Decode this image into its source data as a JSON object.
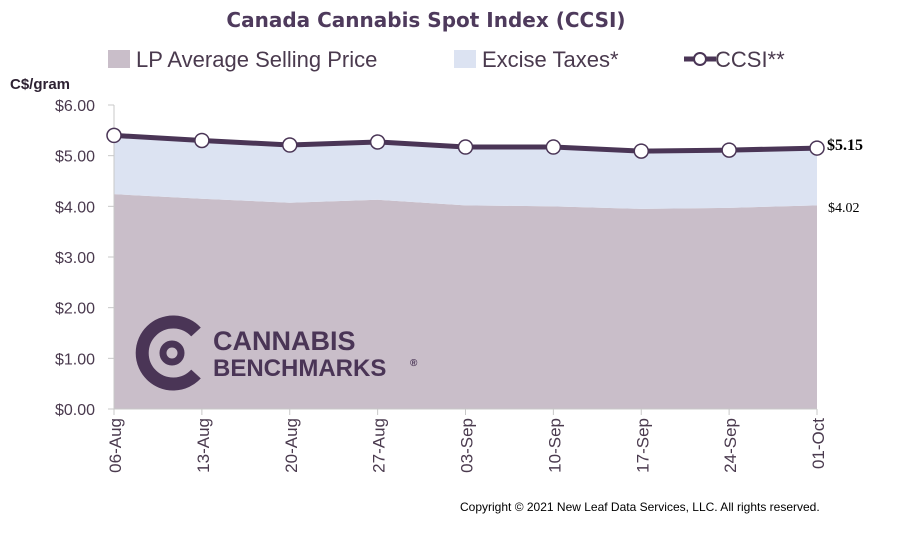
{
  "chart_data": {
    "type": "area",
    "title": "Canada Cannabis Spot Index (CCSI)",
    "ylabel": "C$/gram",
    "categories": [
      "06-Aug",
      "13-Aug",
      "20-Aug",
      "27-Aug",
      "03-Sep",
      "10-Sep",
      "17-Sep",
      "24-Sep",
      "01-Oct"
    ],
    "ylim": [
      0,
      6
    ],
    "yticks": [
      "$0.00",
      "$1.00",
      "$2.00",
      "$3.00",
      "$4.00",
      "$5.00",
      "$6.00"
    ],
    "series": [
      {
        "name": "LP Average Selling Price",
        "type": "area",
        "color": "#c9bec9",
        "values": [
          4.24,
          4.15,
          4.07,
          4.13,
          4.02,
          4.0,
          3.95,
          3.97,
          4.02
        ]
      },
      {
        "name": "Excise Taxes*",
        "type": "area",
        "color": "#dce3f2",
        "values": [
          1.16,
          1.15,
          1.14,
          1.14,
          1.15,
          1.17,
          1.14,
          1.14,
          1.13
        ]
      },
      {
        "name": "CCSI**",
        "type": "line",
        "color": "#4a3556",
        "values": [
          5.4,
          5.3,
          5.21,
          5.27,
          5.17,
          5.17,
          5.09,
          5.11,
          5.15
        ]
      }
    ],
    "end_labels": {
      "ccsi": "$5.15",
      "lp": "$4.02"
    },
    "grid": false,
    "legend_position": "top"
  },
  "logo": {
    "line1": "CANNABIS",
    "line2": "BENCHMARKS",
    "mark": "®",
    "color": "#4a3556"
  },
  "copyright": "Copyright © 2021 New Leaf Data Services, LLC. All rights reserved."
}
